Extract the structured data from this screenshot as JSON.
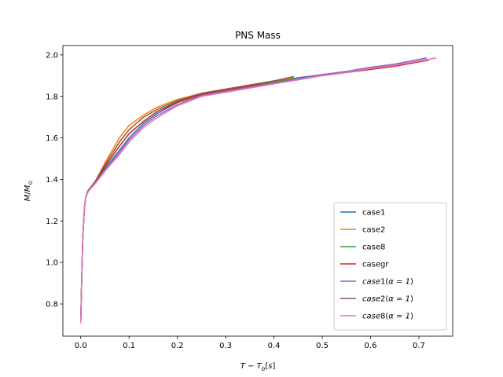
{
  "chart_data": {
    "type": "line",
    "title": "PNS Mass",
    "xlabel": "T − T_b[s]",
    "ylabel": "M/M_⊙",
    "xlim": [
      -0.037,
      0.77
    ],
    "ylim": [
      0.645,
      2.045
    ],
    "xticks": [
      0.0,
      0.1,
      0.2,
      0.3,
      0.4,
      0.5,
      0.6,
      0.7
    ],
    "xtick_labels": [
      "0.0",
      "0.1",
      "0.2",
      "0.3",
      "0.4",
      "0.5",
      "0.6",
      "0.7"
    ],
    "yticks": [
      0.8,
      1.0,
      1.2,
      1.4,
      1.6,
      1.8,
      2.0
    ],
    "ytick_labels": [
      "0.8",
      "1.0",
      "1.2",
      "1.4",
      "1.6",
      "1.8",
      "2.0"
    ],
    "grid": false,
    "legend_position": "lower-right",
    "series": [
      {
        "name": "case1",
        "color": "#1f77b4",
        "x": [
          0.0,
          0.002,
          0.004,
          0.006,
          0.008,
          0.01,
          0.015,
          0.02,
          0.03,
          0.05,
          0.08,
          0.1,
          0.13,
          0.16,
          0.2,
          0.25,
          0.3,
          0.35,
          0.4,
          0.45,
          0.5,
          0.55,
          0.6,
          0.65,
          0.715
        ],
        "y": [
          0.72,
          0.92,
          1.1,
          1.2,
          1.27,
          1.31,
          1.345,
          1.36,
          1.39,
          1.45,
          1.54,
          1.6,
          1.67,
          1.72,
          1.77,
          1.81,
          1.83,
          1.85,
          1.87,
          1.89,
          1.905,
          1.92,
          1.94,
          1.955,
          1.985
        ]
      },
      {
        "name": "case2",
        "color": "#ff7f0e",
        "x": [
          0.0,
          0.002,
          0.004,
          0.006,
          0.008,
          0.01,
          0.015,
          0.02,
          0.03,
          0.05,
          0.08,
          0.1,
          0.13,
          0.16,
          0.2,
          0.25,
          0.3,
          0.35,
          0.4,
          0.44
        ],
        "y": [
          0.72,
          0.92,
          1.1,
          1.2,
          1.27,
          1.31,
          1.345,
          1.36,
          1.39,
          1.48,
          1.6,
          1.66,
          1.71,
          1.75,
          1.785,
          1.815,
          1.835,
          1.855,
          1.875,
          1.89
        ]
      },
      {
        "name": "case8",
        "color": "#2ca02c",
        "x": [
          0.0,
          0.002,
          0.004,
          0.006,
          0.008,
          0.01,
          0.015,
          0.02,
          0.03,
          0.05,
          0.08,
          0.1,
          0.13,
          0.16,
          0.2,
          0.25,
          0.3,
          0.35,
          0.4,
          0.44
        ],
        "y": [
          0.72,
          0.92,
          1.1,
          1.2,
          1.27,
          1.31,
          1.345,
          1.36,
          1.39,
          1.46,
          1.56,
          1.62,
          1.68,
          1.73,
          1.775,
          1.81,
          1.83,
          1.85,
          1.87,
          1.885
        ]
      },
      {
        "name": "casegr",
        "color": "#d62728",
        "x": [
          0.0,
          0.002,
          0.004,
          0.006,
          0.008,
          0.01,
          0.015,
          0.02,
          0.03,
          0.05,
          0.08,
          0.1,
          0.13,
          0.16,
          0.2,
          0.25,
          0.3,
          0.35,
          0.4,
          0.45,
          0.5,
          0.55,
          0.6,
          0.65,
          0.72
        ],
        "y": [
          0.72,
          0.92,
          1.1,
          1.2,
          1.27,
          1.31,
          1.345,
          1.36,
          1.39,
          1.46,
          1.56,
          1.62,
          1.68,
          1.73,
          1.77,
          1.81,
          1.83,
          1.85,
          1.865,
          1.88,
          1.9,
          1.915,
          1.93,
          1.945,
          1.975
        ]
      },
      {
        "name": "case1(α=1)",
        "color": "#9467bd",
        "x": [
          0.0,
          0.002,
          0.004,
          0.006,
          0.008,
          0.01,
          0.015,
          0.02,
          0.03,
          0.05,
          0.08,
          0.1,
          0.13,
          0.16,
          0.2,
          0.25,
          0.3,
          0.35,
          0.4,
          0.45,
          0.5,
          0.55,
          0.6,
          0.65,
          0.715
        ],
        "y": [
          0.72,
          0.92,
          1.1,
          1.2,
          1.27,
          1.31,
          1.34,
          1.355,
          1.38,
          1.44,
          1.53,
          1.59,
          1.66,
          1.71,
          1.76,
          1.805,
          1.825,
          1.845,
          1.865,
          1.885,
          1.905,
          1.92,
          1.94,
          1.955,
          1.985
        ]
      },
      {
        "name": "case2(α=1)",
        "color": "#8c564b",
        "x": [
          0.0,
          0.002,
          0.004,
          0.006,
          0.008,
          0.01,
          0.015,
          0.02,
          0.03,
          0.05,
          0.08,
          0.1,
          0.13,
          0.16,
          0.2,
          0.25,
          0.3,
          0.35,
          0.4,
          0.44
        ],
        "y": [
          0.72,
          0.92,
          1.1,
          1.2,
          1.27,
          1.31,
          1.345,
          1.36,
          1.39,
          1.47,
          1.58,
          1.64,
          1.7,
          1.74,
          1.78,
          1.815,
          1.835,
          1.855,
          1.875,
          1.895
        ]
      },
      {
        "name": "case8(α=1)",
        "color": "#e377c2",
        "x": [
          0.0,
          0.002,
          0.004,
          0.006,
          0.008,
          0.01,
          0.015,
          0.02,
          0.03,
          0.05,
          0.08,
          0.1,
          0.13,
          0.16,
          0.2,
          0.25,
          0.3,
          0.35,
          0.4,
          0.45,
          0.5,
          0.55,
          0.6,
          0.65,
          0.735
        ],
        "y": [
          0.71,
          0.92,
          1.1,
          1.2,
          1.27,
          1.31,
          1.34,
          1.355,
          1.38,
          1.44,
          1.52,
          1.58,
          1.65,
          1.7,
          1.755,
          1.8,
          1.82,
          1.84,
          1.86,
          1.88,
          1.9,
          1.915,
          1.935,
          1.95,
          1.985
        ]
      }
    ]
  }
}
